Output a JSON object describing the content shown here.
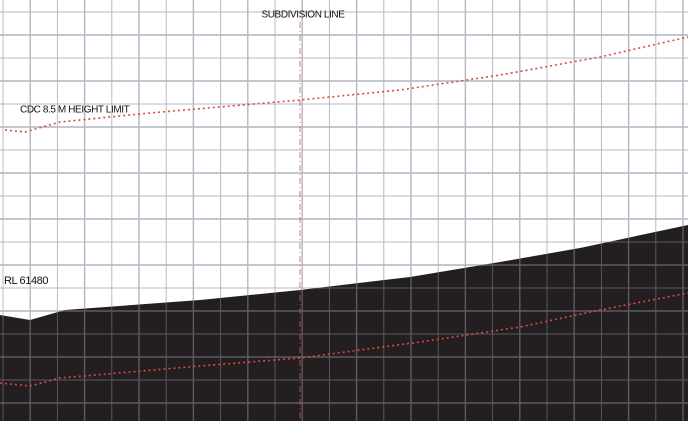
{
  "labels": {
    "subdivision": "SUBDIVISION LINE",
    "height_limit": "CDC 8.5 M HEIGHT LIMIT",
    "level": "RL 61480"
  }
}
